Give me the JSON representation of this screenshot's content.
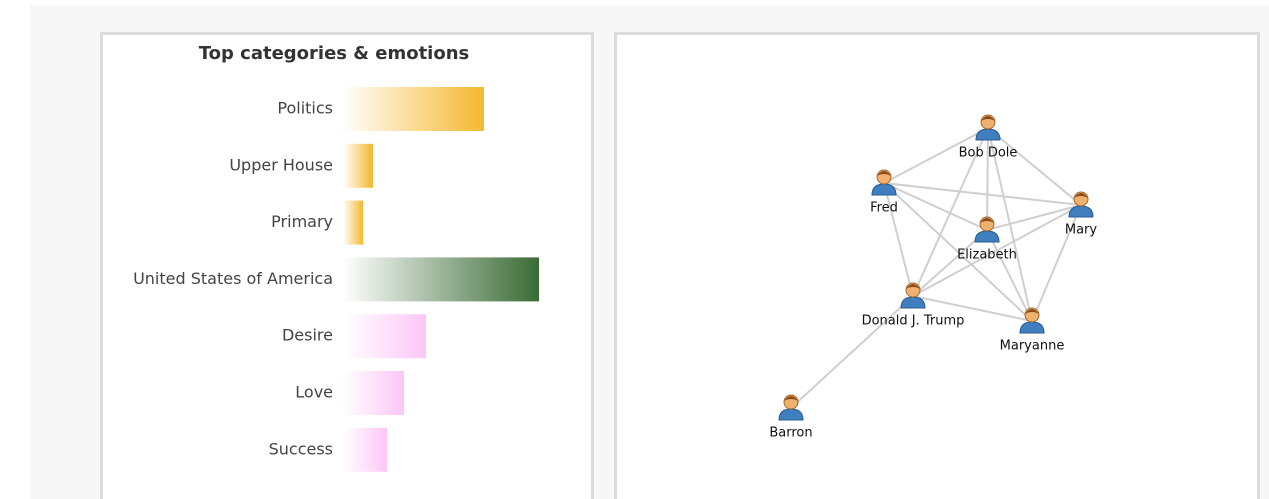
{
  "chart_data": {
    "type": "bar",
    "orientation": "horizontal",
    "title": "Top categories & emotions",
    "categories": [
      "Politics",
      "Upper House",
      "Primary",
      "United States of America",
      "Desire",
      "Love",
      "Success"
    ],
    "values": [
      141,
      30,
      20,
      196,
      83,
      61,
      44
    ],
    "colors": [
      "#f5b82e",
      "#f5b82e",
      "#f5b82e",
      "#3a6b35",
      "#fcc6f6",
      "#fcc6f6",
      "#fcc6f6"
    ]
  },
  "network": {
    "nodes": [
      {
        "label": "Bob Dole"
      },
      {
        "label": "Fred"
      },
      {
        "label": "Mary"
      },
      {
        "label": "Elizabeth"
      },
      {
        "label": "Donald J. Trump"
      },
      {
        "label": "Maryanne"
      },
      {
        "label": "Barron"
      }
    ],
    "edges": [
      [
        1,
        0
      ],
      [
        0,
        2
      ],
      [
        0,
        3
      ],
      [
        0,
        4
      ],
      [
        0,
        5
      ],
      [
        1,
        2
      ],
      [
        1,
        3
      ],
      [
        1,
        4
      ],
      [
        1,
        5
      ],
      [
        2,
        3
      ],
      [
        2,
        4
      ],
      [
        2,
        5
      ],
      [
        3,
        4
      ],
      [
        3,
        5
      ],
      [
        4,
        5
      ],
      [
        4,
        6
      ]
    ]
  }
}
